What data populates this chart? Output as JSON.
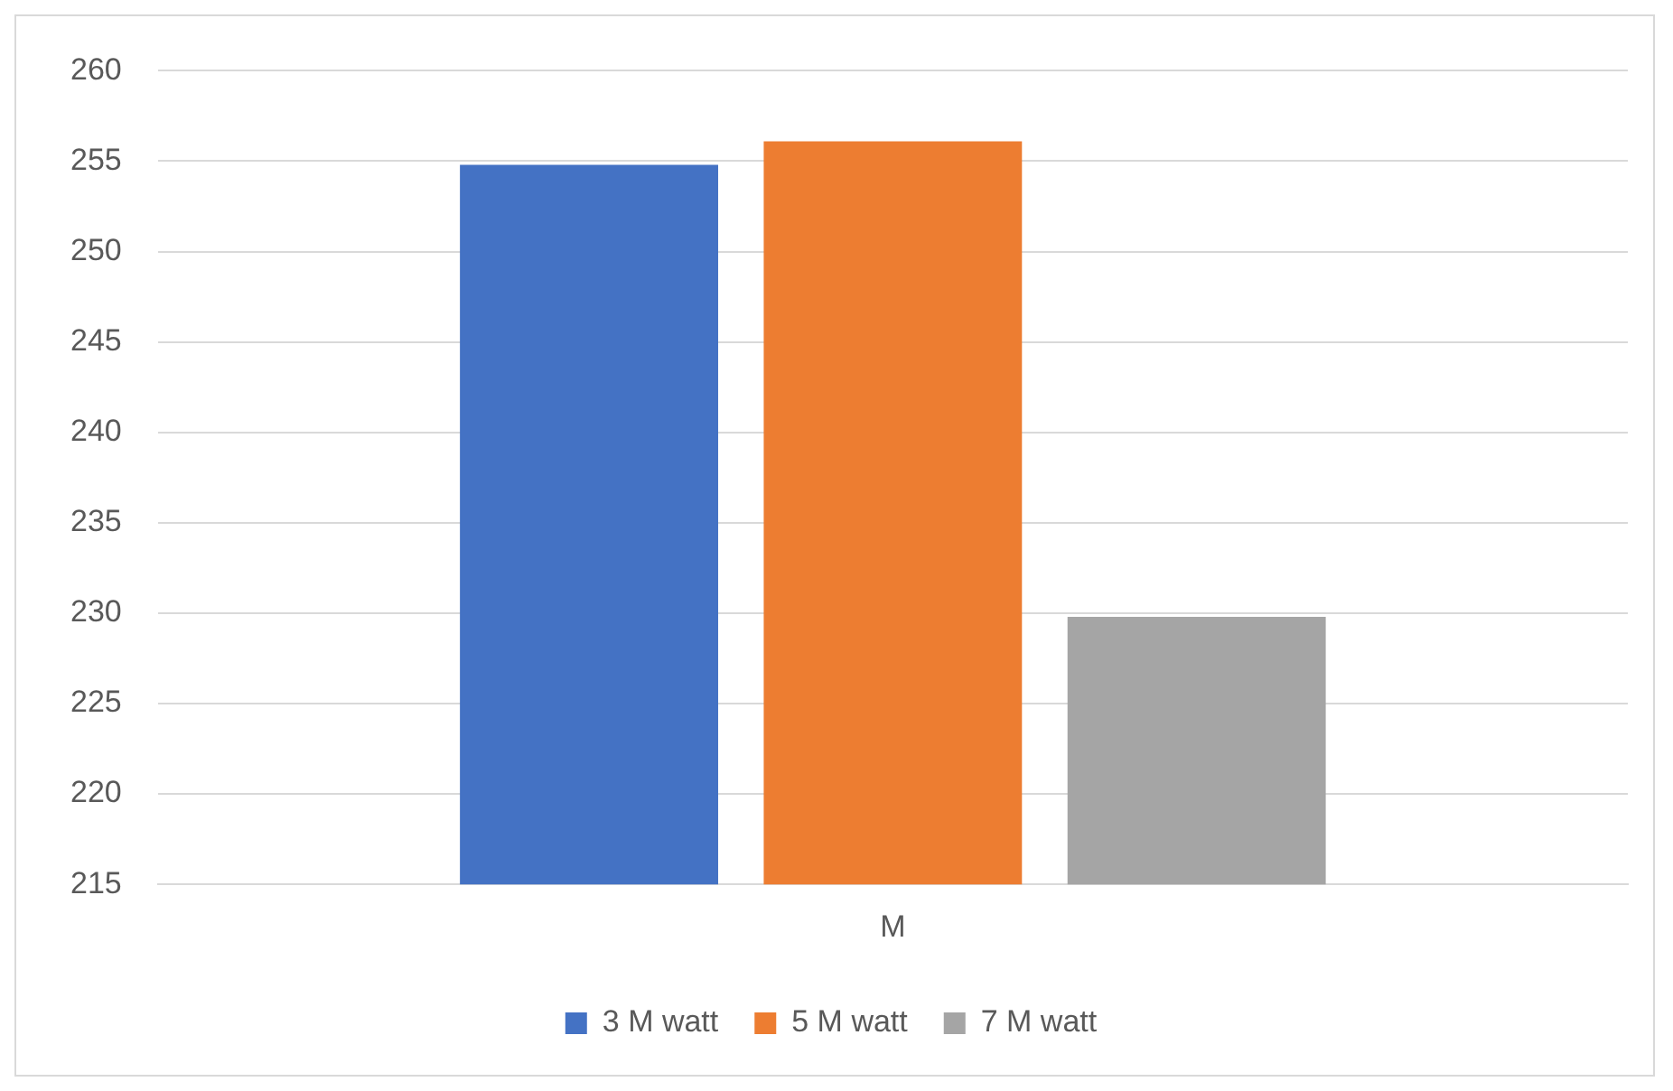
{
  "chart_data": {
    "type": "bar",
    "categories": [
      "M"
    ],
    "series": [
      {
        "name": "3 M watt",
        "color": "#4472c4",
        "values": [
          254.8
        ]
      },
      {
        "name": "5 M watt",
        "color": "#ed7d31",
        "values": [
          256.1
        ]
      },
      {
        "name": "7 M watt",
        "color": "#a5a5a5",
        "values": [
          229.8
        ]
      }
    ],
    "ylim": [
      215,
      260
    ],
    "yticks": [
      215,
      220,
      225,
      230,
      235,
      240,
      245,
      250,
      255,
      260
    ],
    "grid": "y",
    "legend": "bottom"
  }
}
